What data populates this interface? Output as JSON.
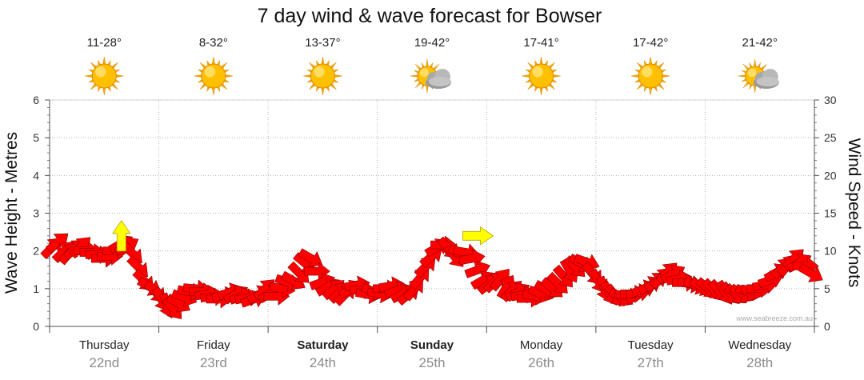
{
  "chart_data": {
    "type": "wind-wave forecast",
    "title": "7 day wind & wave forecast for Bowser",
    "y_left": {
      "label": "Wave Height - Metres",
      "min": 0,
      "max": 6,
      "ticks": [
        "0",
        "1",
        "2",
        "3",
        "4",
        "5",
        "6"
      ]
    },
    "y_right": {
      "label": "Wind Speed - Knots",
      "min": 0,
      "max": 30,
      "ticks": [
        "0",
        "5",
        "10",
        "15",
        "20",
        "25",
        "30"
      ]
    },
    "days": [
      {
        "name": "Thursday",
        "date": "22nd",
        "temp": "11-28°",
        "weather": "sunny",
        "bold": false
      },
      {
        "name": "Friday",
        "date": "23rd",
        "temp": "8-32°",
        "weather": "sunny",
        "bold": false
      },
      {
        "name": "Saturday",
        "date": "24th",
        "temp": "13-37°",
        "weather": "sunny",
        "bold": true
      },
      {
        "name": "Sunday",
        "date": "25th",
        "temp": "19-42°",
        "weather": "partly-cloudy",
        "bold": true
      },
      {
        "name": "Monday",
        "date": "26th",
        "temp": "17-41°",
        "weather": "sunny",
        "bold": false
      },
      {
        "name": "Tuesday",
        "date": "27th",
        "temp": "17-42°",
        "weather": "sunny",
        "bold": false
      },
      {
        "name": "Wednesday",
        "date": "28th",
        "temp": "21-42°",
        "weather": "partly-cloudy",
        "bold": false
      }
    ],
    "wind_knots": [
      10.5,
      11.2,
      10.0,
      9.8,
      10.3,
      10.6,
      10.0,
      9.8,
      9.5,
      9.0,
      9.3,
      10.0,
      11.0,
      10.7,
      9.6,
      7.8,
      6.0,
      5.2,
      4.5,
      3.5,
      2.7,
      2.3,
      3.0,
      3.8,
      4.6,
      5.0,
      4.6,
      4.3,
      3.9,
      3.6,
      4.1,
      4.6,
      4.3,
      4.0,
      3.8,
      3.6,
      4.3,
      5.0,
      4.4,
      4.0,
      5.0,
      5.8,
      6.0,
      7.0,
      8.3,
      9.0,
      7.3,
      5.9,
      5.3,
      5.0,
      4.6,
      4.3,
      5.0,
      5.5,
      4.8,
      4.2,
      4.6,
      4.3,
      5.0,
      5.4,
      4.8,
      4.4,
      4.3,
      5.0,
      6.5,
      8.0,
      9.3,
      10.5,
      10.8,
      10.3,
      9.2,
      9.5,
      9.8,
      9.0,
      7.5,
      6.2,
      5.7,
      6.0,
      6.3,
      5.3,
      4.8,
      4.6,
      4.2,
      3.7,
      4.0,
      4.3,
      4.8,
      5.0,
      5.6,
      6.5,
      7.3,
      7.8,
      8.3,
      8.5,
      6.9,
      5.9,
      4.9,
      4.3,
      4.0,
      3.8,
      4.0,
      4.3,
      4.5,
      5.0,
      5.5,
      6.0,
      6.5,
      7.2,
      7.0,
      6.3,
      5.8,
      5.6,
      5.4,
      5.2,
      5.0,
      4.8,
      4.6,
      4.4,
      4.3,
      4.2,
      4.3,
      4.5,
      4.7,
      5.0,
      5.5,
      6.2,
      7.2,
      7.8,
      8.2,
      9.0,
      8.5,
      8.0,
      7.0
    ],
    "wind_directions_deg": [
      45,
      50,
      45,
      40,
      50,
      45,
      90,
      90,
      90,
      90,
      90,
      90,
      60,
      60,
      135,
      135,
      135,
      120,
      135,
      150,
      160,
      140,
      120,
      110,
      100,
      95,
      90,
      80,
      85,
      90,
      80,
      70,
      60,
      70,
      80,
      70,
      60,
      45,
      60,
      90,
      100,
      110,
      120,
      135,
      130,
      120,
      90,
      70,
      60,
      50,
      45,
      45,
      60,
      80,
      90,
      100,
      110,
      100,
      90,
      80,
      70,
      60,
      50,
      40,
      40,
      45,
      50,
      60,
      90,
      135,
      140,
      120,
      100,
      80,
      70,
      60,
      50,
      45,
      40,
      30,
      45,
      60,
      80,
      90,
      100,
      110,
      120,
      130,
      135,
      140,
      150,
      135,
      120,
      110,
      140,
      150,
      160,
      150,
      140,
      120,
      100,
      90,
      80,
      70,
      60,
      50,
      45,
      45,
      60,
      80,
      90,
      100,
      110,
      120,
      130,
      135,
      140,
      150,
      140,
      130,
      120,
      110,
      100,
      90,
      80,
      70,
      60,
      45,
      40,
      45,
      60,
      90,
      120
    ],
    "swell_markers": [
      {
        "x_index": 12,
        "wave_m": 2.4,
        "direction_deg": 0
      },
      {
        "x_index": 74,
        "wave_m": 2.4,
        "direction_deg": 90
      }
    ]
  },
  "credit": "www.seabreeze.com.au",
  "colors": {
    "wind_arrow": "#ff0000",
    "wind_arrow_outline": "#8c0000",
    "swell_arrow": "#ffff00",
    "swell_outline": "#b8a000",
    "grid": "#b4b4b4",
    "axis": "#505050"
  }
}
